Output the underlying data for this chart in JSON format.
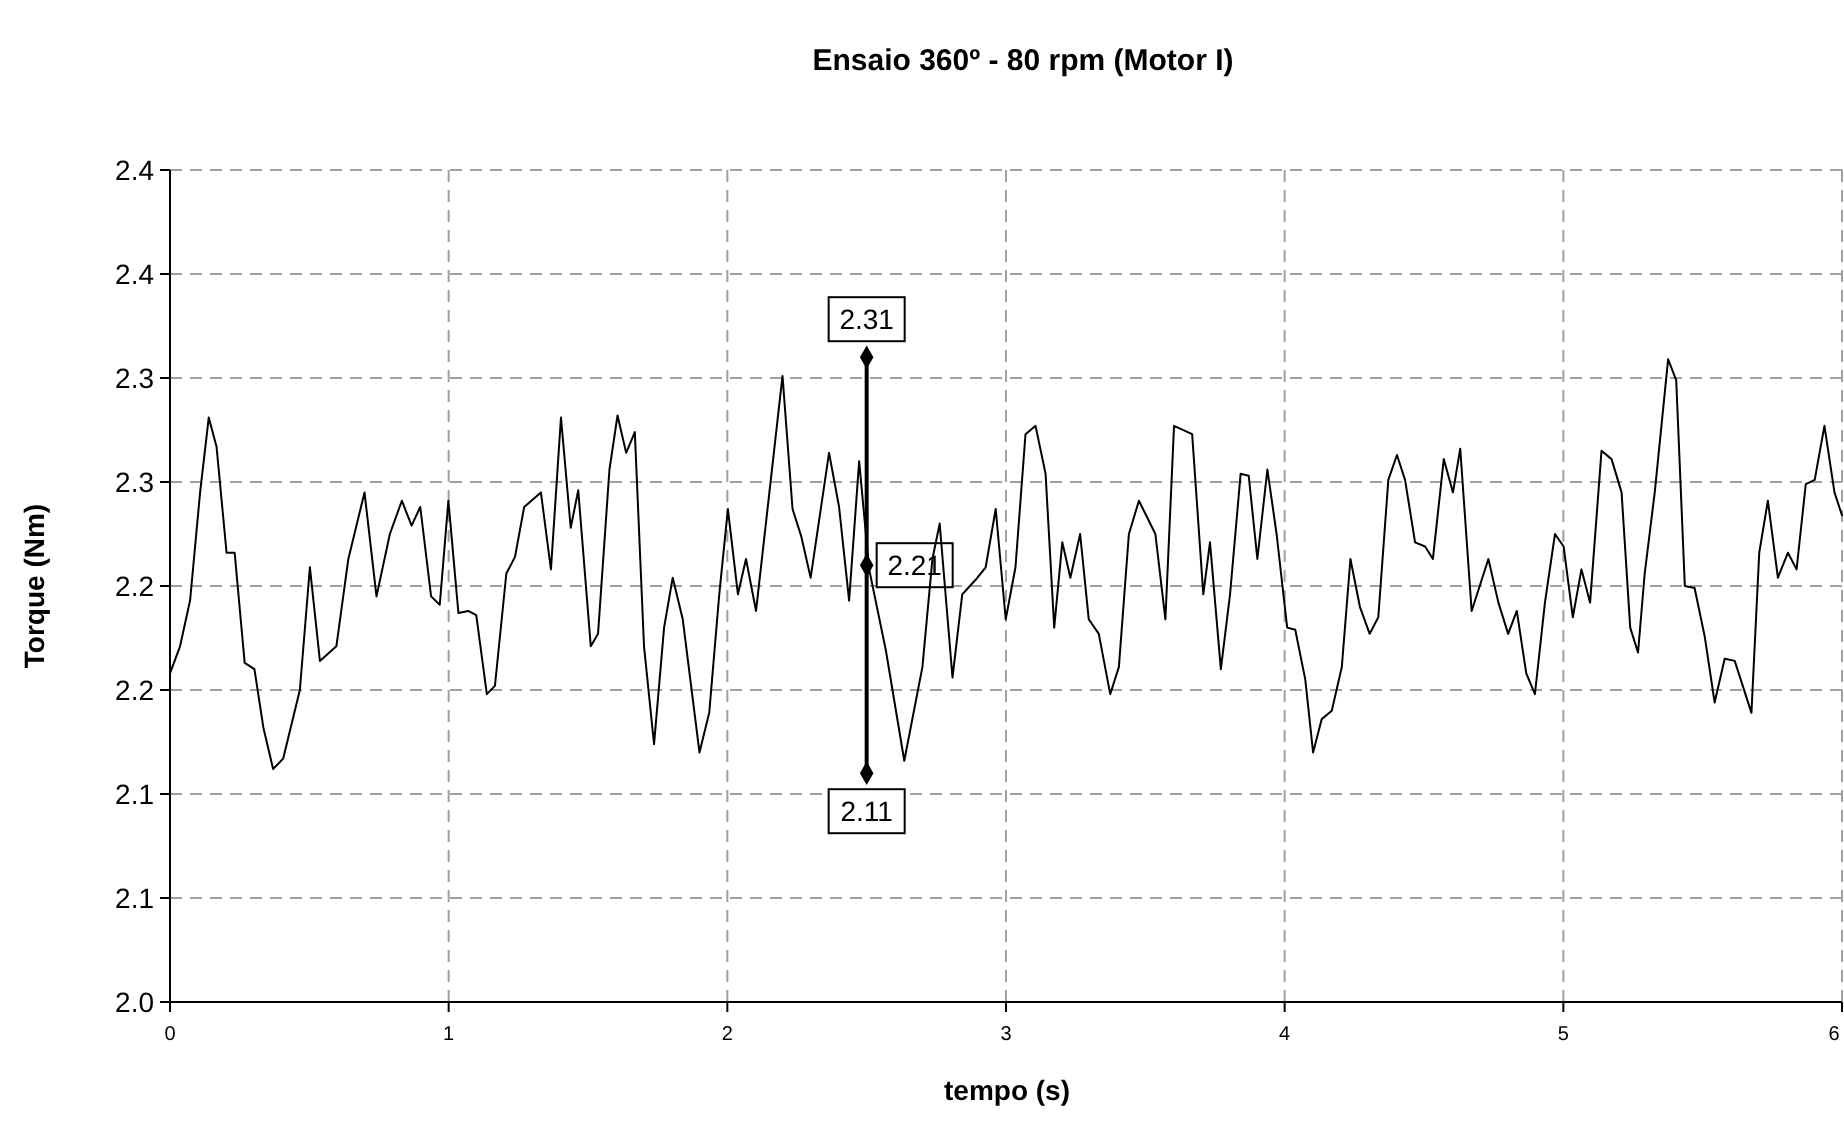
{
  "chart_data": {
    "type": "line",
    "title": "Ensaio 360º - 80 rpm (Motor I)",
    "xlabel": "tempo (s)",
    "ylabel": "Torque (Nm)",
    "xlim": [
      0,
      6
    ],
    "xticks": [
      0,
      1,
      2,
      3,
      4,
      5,
      6
    ],
    "ylim": [
      2.0,
      2.4
    ],
    "yticks": [
      {
        "value": 2.0,
        "label": "2.0"
      },
      {
        "value": 2.05,
        "label": "2.1"
      },
      {
        "value": 2.1,
        "label": "2.1"
      },
      {
        "value": 2.15,
        "label": "2.2"
      },
      {
        "value": 2.2,
        "label": "2.2"
      },
      {
        "value": 2.25,
        "label": "2.3"
      },
      {
        "value": 2.3,
        "label": "2.3"
      },
      {
        "value": 2.35,
        "label": "2.4"
      },
      {
        "value": 2.4,
        "label": "2.4"
      }
    ],
    "grid": true,
    "line_style": "solid",
    "series": [
      {
        "color": "#000000",
        "marker": "none",
        "x": [
          0,
          0.036,
          0.072,
          0.108,
          0.139,
          0.167,
          0.203,
          0.232,
          0.268,
          0.303,
          0.335,
          0.37,
          0.406,
          0.466,
          0.502,
          0.538,
          0.597,
          0.64,
          0.698,
          0.741,
          0.789,
          0.832,
          0.867,
          0.898,
          0.937,
          0.968,
          0.999,
          1.035,
          1.07,
          1.099,
          1.137,
          1.166,
          1.207,
          1.238,
          1.271,
          1.331,
          1.367,
          1.403,
          1.438,
          1.465,
          1.51,
          1.536,
          1.577,
          1.606,
          1.637,
          1.668,
          1.701,
          1.737,
          1.773,
          1.804,
          1.84,
          1.9,
          1.935,
          1.971,
          2.002,
          2.038,
          2.067,
          2.103,
          2.198,
          2.234,
          2.265,
          2.299,
          2.365,
          2.401,
          2.437,
          2.473,
          2.509,
          2.569,
          2.635,
          2.7,
          2.736,
          2.762,
          2.808,
          2.843,
          2.891,
          2.927,
          2.963,
          2.999,
          3.034,
          3.07,
          3.106,
          3.142,
          3.173,
          3.202,
          3.231,
          3.266,
          3.297,
          3.333,
          3.374,
          3.405,
          3.441,
          3.477,
          3.536,
          3.572,
          3.603,
          3.668,
          3.708,
          3.732,
          3.771,
          3.804,
          3.842,
          3.871,
          3.902,
          3.938,
          3.971,
          4.009,
          4.038,
          4.074,
          4.102,
          4.133,
          4.169,
          4.205,
          4.236,
          4.27,
          4.305,
          4.336,
          4.372,
          4.403,
          4.432,
          4.468,
          4.504,
          4.532,
          4.571,
          4.604,
          4.63,
          4.671,
          4.731,
          4.767,
          4.802,
          4.833,
          4.867,
          4.898,
          4.934,
          4.97,
          5.001,
          5.034,
          5.065,
          5.096,
          5.137,
          5.173,
          5.209,
          5.24,
          5.268,
          5.292,
          5.328,
          5.376,
          5.405,
          5.436,
          5.471,
          5.507,
          5.543,
          5.579,
          5.615,
          5.675,
          5.703,
          5.734,
          5.77,
          5.806,
          5.837,
          5.87,
          5.902,
          5.937,
          5.973,
          6.0
        ],
        "values": [
          2.158,
          2.171,
          2.193,
          2.245,
          2.281,
          2.267,
          2.216,
          2.216,
          2.163,
          2.16,
          2.132,
          2.112,
          2.117,
          2.15,
          2.209,
          2.164,
          2.171,
          2.213,
          2.245,
          2.195,
          2.225,
          2.241,
          2.229,
          2.238,
          2.195,
          2.191,
          2.241,
          2.187,
          2.188,
          2.186,
          2.148,
          2.152,
          2.206,
          2.214,
          2.238,
          2.245,
          2.208,
          2.281,
          2.228,
          2.246,
          2.171,
          2.177,
          2.256,
          2.282,
          2.264,
          2.274,
          2.171,
          2.124,
          2.18,
          2.204,
          2.184,
          2.12,
          2.139,
          2.196,
          2.237,
          2.196,
          2.213,
          2.188,
          2.301,
          2.237,
          2.224,
          2.204,
          2.264,
          2.238,
          2.193,
          2.26,
          2.208,
          2.169,
          2.116,
          2.161,
          2.213,
          2.23,
          2.156,
          2.196,
          2.203,
          2.209,
          2.237,
          2.184,
          2.209,
          2.273,
          2.277,
          2.254,
          2.18,
          2.221,
          2.204,
          2.225,
          2.184,
          2.177,
          2.148,
          2.161,
          2.225,
          2.241,
          2.225,
          2.184,
          2.277,
          2.273,
          2.196,
          2.221,
          2.16,
          2.196,
          2.254,
          2.253,
          2.213,
          2.256,
          2.225,
          2.18,
          2.179,
          2.155,
          2.12,
          2.136,
          2.14,
          2.161,
          2.213,
          2.19,
          2.177,
          2.185,
          2.251,
          2.263,
          2.251,
          2.221,
          2.219,
          2.213,
          2.261,
          2.245,
          2.266,
          2.188,
          2.213,
          2.192,
          2.177,
          2.188,
          2.158,
          2.148,
          2.192,
          2.225,
          2.219,
          2.185,
          2.208,
          2.192,
          2.265,
          2.261,
          2.245,
          2.18,
          2.168,
          2.206,
          2.245,
          2.309,
          2.299,
          2.2,
          2.199,
          2.176,
          2.144,
          2.165,
          2.164,
          2.139,
          2.216,
          2.241,
          2.204,
          2.216,
          2.208,
          2.249,
          2.251,
          2.277,
          2.245,
          2.234
        ]
      },
      {
        "color": "#000000",
        "marker": "diamond",
        "x": [
          2.5,
          2.5,
          2.5
        ],
        "values": [
          2.11,
          2.21,
          2.31
        ],
        "value_labels": [
          "2.11",
          "2.21",
          "2.31"
        ]
      }
    ]
  }
}
